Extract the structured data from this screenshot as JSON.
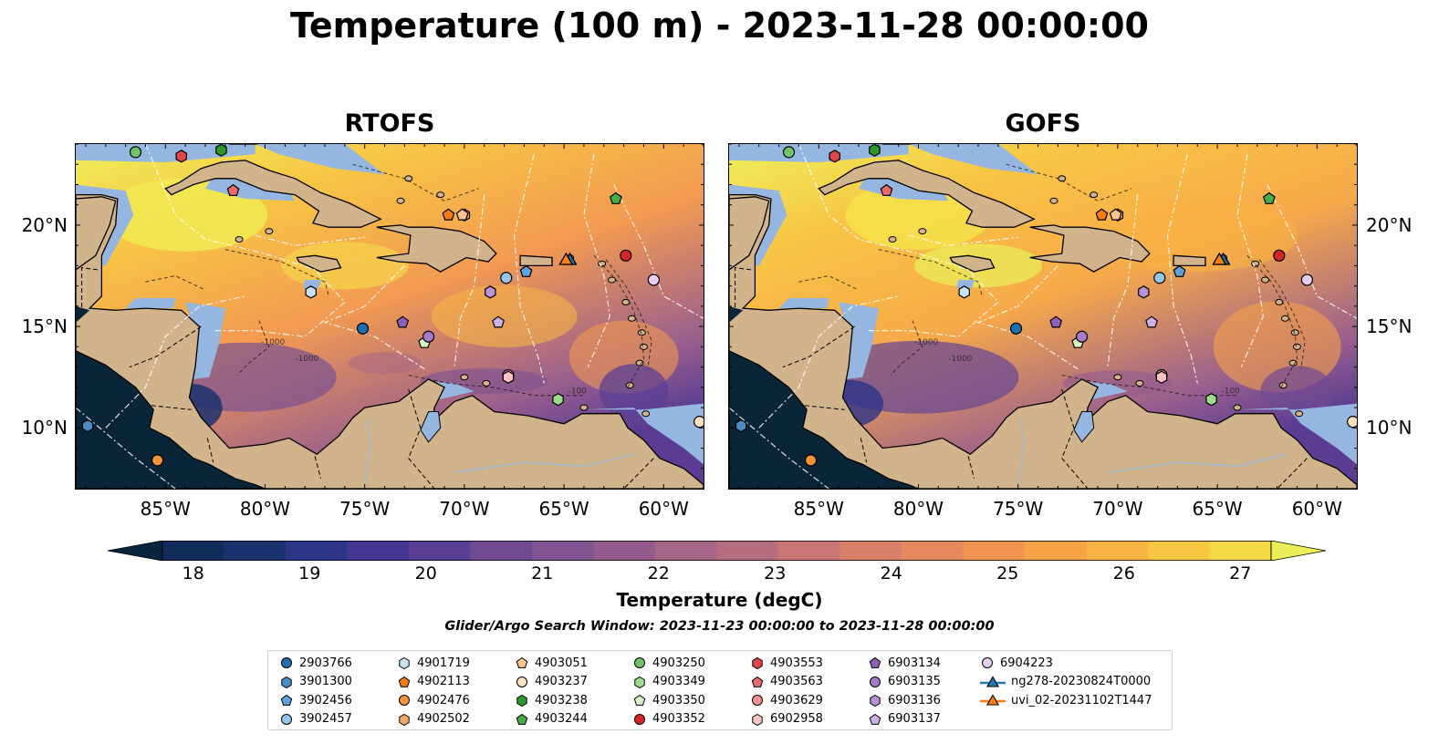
{
  "suptitle": "Temperature (100 m) - 2023-11-28 00:00:00",
  "panels": [
    {
      "title": "RTOFS",
      "key": "rtofs"
    },
    {
      "title": "GOFS",
      "key": "gofs"
    }
  ],
  "map": {
    "lon_range": [
      -89.5,
      -58.0
    ],
    "lat_range": [
      7.0,
      24.0
    ],
    "x_ticks": [
      {
        "lon": -85,
        "label": "85°W"
      },
      {
        "lon": -80,
        "label": "80°W"
      },
      {
        "lon": -75,
        "label": "75°W"
      },
      {
        "lon": -70,
        "label": "70°W"
      },
      {
        "lon": -65,
        "label": "65°W"
      },
      {
        "lon": -60,
        "label": "60°W"
      }
    ],
    "y_ticks": [
      {
        "lat": 20,
        "label": "20°N"
      },
      {
        "lat": 15,
        "label": "15°N"
      },
      {
        "lat": 10,
        "label": "10°N"
      }
    ],
    "contour_labels": [
      "-1000",
      "-1000",
      "-100"
    ]
  },
  "colorbar": {
    "min": 18,
    "max": 27,
    "ticks": [
      "18",
      "19",
      "20",
      "21",
      "22",
      "23",
      "24",
      "25",
      "26",
      "27"
    ],
    "colors": [
      "#07243b",
      "#112c5b",
      "#1c3170",
      "#2d3589",
      "#443692",
      "#5b3f94",
      "#6f4a93",
      "#805391",
      "#945c8c",
      "#a56688",
      "#b86d7f",
      "#c97576",
      "#d9806a",
      "#e7895e",
      "#f19551",
      "#f6a247",
      "#f8b342",
      "#f8c641",
      "#f4d844",
      "#ecee57"
    ],
    "label": "Temperature (degC)"
  },
  "search_window": "Glider/Argo Search Window: 2023-11-23 00:00:00 to 2023-11-28 00:00:00",
  "legend": {
    "items": [
      {
        "label": "2903766",
        "marker": "circle",
        "color": "#1f6eae"
      },
      {
        "label": "3901300",
        "marker": "hexagon",
        "color": "#4a8bc4"
      },
      {
        "label": "3902456",
        "marker": "pentagon",
        "color": "#5fa1dc"
      },
      {
        "label": "3902457",
        "marker": "circle",
        "color": "#94c6ea"
      },
      {
        "label": "4901719",
        "marker": "hexagon",
        "color": "#c8e3f6"
      },
      {
        "label": "4902113",
        "marker": "pentagon",
        "color": "#f47d12"
      },
      {
        "label": "4902476",
        "marker": "circle",
        "color": "#f89238"
      },
      {
        "label": "4902502",
        "marker": "hexagon",
        "color": "#f9a867"
      },
      {
        "label": "4903051",
        "marker": "pentagon",
        "color": "#fbc48f"
      },
      {
        "label": "4903237",
        "marker": "circle",
        "color": "#fde0bf"
      },
      {
        "label": "4903238",
        "marker": "hexagon",
        "color": "#2b9a2c"
      },
      {
        "label": "4903244",
        "marker": "pentagon",
        "color": "#46ac44"
      },
      {
        "label": "4903250",
        "marker": "circle",
        "color": "#72c46a"
      },
      {
        "label": "4903349",
        "marker": "hexagon",
        "color": "#9fdc8e"
      },
      {
        "label": "4903350",
        "marker": "pentagon",
        "color": "#d4f4c4"
      },
      {
        "label": "4903352",
        "marker": "circle",
        "color": "#d62526"
      },
      {
        "label": "4903553",
        "marker": "hexagon",
        "color": "#e04648"
      },
      {
        "label": "4903563",
        "marker": "pentagon",
        "color": "#eb6a6c"
      },
      {
        "label": "4903629",
        "marker": "circle",
        "color": "#f39291"
      },
      {
        "label": "6902958",
        "marker": "hexagon",
        "color": "#fbc3c0"
      },
      {
        "label": "6903134",
        "marker": "pentagon",
        "color": "#8d5fb9"
      },
      {
        "label": "6903135",
        "marker": "circle",
        "color": "#a47ac9"
      },
      {
        "label": "6903136",
        "marker": "hexagon",
        "color": "#b893d6"
      },
      {
        "label": "6903137",
        "marker": "pentagon",
        "color": "#cfb1e6"
      },
      {
        "label": "6904223",
        "marker": "circle",
        "color": "#e4cff2"
      },
      {
        "label": "ng278-20230824T0000",
        "marker": "triangle-line",
        "color": "#1f77b4"
      },
      {
        "label": "uvi_02-20231102T1447",
        "marker": "triangle-line",
        "color": "#ff7f0e"
      }
    ]
  },
  "floats": [
    {
      "id": "2903766",
      "lon": -75.1,
      "lat": 14.9
    },
    {
      "id": "3901300",
      "lon": -88.9,
      "lat": 10.1
    },
    {
      "id": "3902456",
      "lon": -66.9,
      "lat": 17.7
    },
    {
      "id": "3902457",
      "lon": -67.9,
      "lat": 17.4
    },
    {
      "id": "4901719",
      "lon": -77.7,
      "lat": 16.7
    },
    {
      "id": "4902113",
      "lon": -70.8,
      "lat": 20.5
    },
    {
      "id": "4902476",
      "lon": -85.4,
      "lat": 8.4
    },
    {
      "id": "4902502",
      "lon": -70.0,
      "lat": 20.5
    },
    {
      "id": "4903051",
      "lon": -70.1,
      "lat": 20.5
    },
    {
      "id": "4903237",
      "lon": -58.2,
      "lat": 10.3
    },
    {
      "id": "4903238",
      "lon": -82.2,
      "lat": 23.7
    },
    {
      "id": "4903244",
      "lon": -62.4,
      "lat": 21.3
    },
    {
      "id": "4903250",
      "lon": -86.5,
      "lat": 23.6
    },
    {
      "id": "4903349",
      "lon": -65.3,
      "lat": 11.4
    },
    {
      "id": "4903350",
      "lon": -72.0,
      "lat": 14.2
    },
    {
      "id": "4903352",
      "lon": -61.9,
      "lat": 18.5
    },
    {
      "id": "4903553",
      "lon": -84.2,
      "lat": 23.4
    },
    {
      "id": "4903563",
      "lon": -81.6,
      "lat": 21.7
    },
    {
      "id": "4903629",
      "lon": -67.8,
      "lat": 12.6
    },
    {
      "id": "6902958",
      "lon": -67.8,
      "lat": 12.5
    },
    {
      "id": "6903134",
      "lon": -73.1,
      "lat": 15.2
    },
    {
      "id": "6903135",
      "lon": -71.8,
      "lat": 14.5
    },
    {
      "id": "6903136",
      "lon": -68.7,
      "lat": 16.7
    },
    {
      "id": "6903137",
      "lon": -68.3,
      "lat": 15.2
    },
    {
      "id": "6904223",
      "lon": -60.5,
      "lat": 17.3
    }
  ],
  "gliders": [
    {
      "id": "ng278-20230824T0000",
      "lon": -64.8,
      "lat": 18.2
    },
    {
      "id": "uvi_02-20231102T1447",
      "lon": -64.9,
      "lat": 18.2
    }
  ]
}
